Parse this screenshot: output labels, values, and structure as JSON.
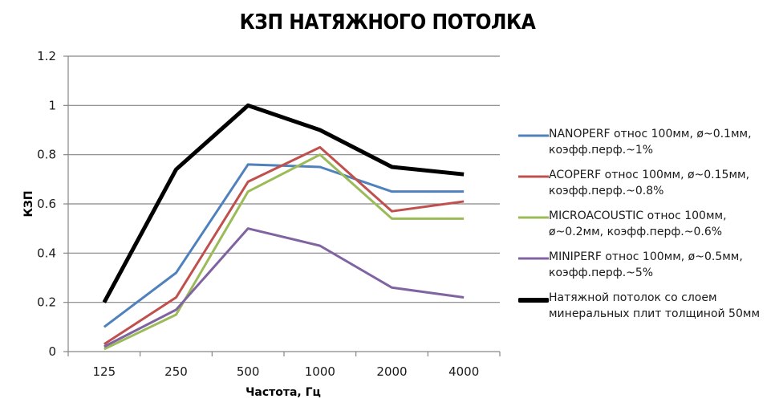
{
  "title": "КЗП НАТЯЖНОГО ПОТОЛКА",
  "chart_data": {
    "type": "line",
    "title": "КЗП НАТЯЖНОГО ПОТОЛКА",
    "xlabel": "Частота, Гц",
    "ylabel": "КЗП",
    "categories": [
      "125",
      "250",
      "500",
      "1000",
      "2000",
      "4000"
    ],
    "ylim": [
      0,
      1.2
    ],
    "yticks": [
      "0",
      "0.2",
      "0.4",
      "0.6",
      "0.8",
      "1",
      "1.2"
    ],
    "grid": true,
    "legend_position": "right",
    "series": [
      {
        "name": "NANOPERF относ 100мм, ø~0.1мм, коэфф.перф.~1%",
        "color": "#4f81bd",
        "width": 3,
        "values": [
          0.1,
          0.32,
          0.76,
          0.75,
          0.65,
          0.65
        ]
      },
      {
        "name": "ACOPERF относ 100мм, ø~0.15мм, коэфф.перф.~0.8%",
        "color": "#c0504d",
        "width": 3,
        "values": [
          0.03,
          0.22,
          0.69,
          0.83,
          0.57,
          0.61
        ]
      },
      {
        "name": "MICROACOUSTIC относ 100мм, ø~0.2мм, коэфф.перф.~0.6%",
        "color": "#9bbb59",
        "width": 3,
        "values": [
          0.01,
          0.15,
          0.65,
          0.8,
          0.54,
          0.54
        ]
      },
      {
        "name": "MINIPERF относ 100мм, ø~0.5мм, коэфф.перф.~5%",
        "color": "#8064a2",
        "width": 3,
        "values": [
          0.02,
          0.17,
          0.5,
          0.43,
          0.26,
          0.22
        ]
      },
      {
        "name": "Натяжной потолок со слоем минеральных плит толщиной 50мм",
        "color": "#000000",
        "width": 5,
        "values": [
          0.2,
          0.74,
          1.0,
          0.9,
          0.75,
          0.72
        ]
      }
    ]
  },
  "legend": {
    "items": [
      {
        "label": "NANOPERF  относ 100мм, ø~0.1мм, коэфф.перф.~1%"
      },
      {
        "label": "ACOPERF  относ 100мм, ø~0.15мм, коэфф.перф.~0.8%"
      },
      {
        "label": "MICROACOUSTIC  относ 100мм, ø~0.2мм, коэфф.перф.~0.6%"
      },
      {
        "label": "MINIPERF  относ 100мм, ø~0.5мм, коэфф.перф.~5%"
      },
      {
        "label": "Натяжной потолок со слоем минеральных  плит толщиной 50мм"
      }
    ]
  }
}
